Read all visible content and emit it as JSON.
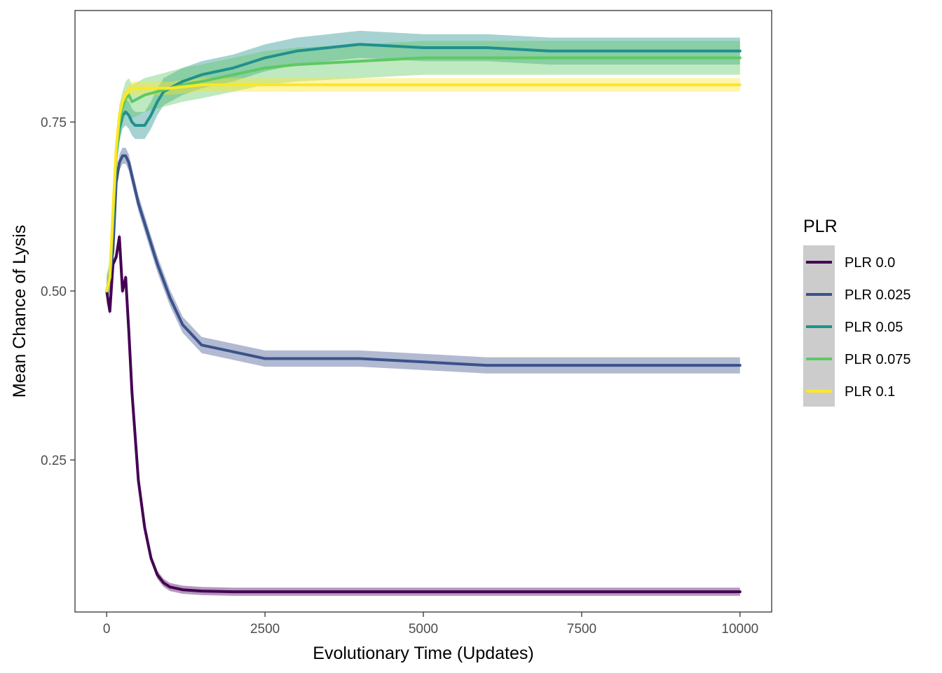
{
  "chart_data": {
    "type": "line",
    "title": "",
    "xlabel": "Evolutionary Time (Updates)",
    "ylabel": "Mean Chance of Lysis",
    "xlim": [
      -500,
      10500
    ],
    "ylim": [
      0.025,
      0.915
    ],
    "x_ticks": [
      0,
      2500,
      5000,
      7500,
      10000
    ],
    "x_tick_labels": [
      "0",
      "2500",
      "5000",
      "7500",
      "10000"
    ],
    "y_ticks": [
      0.25,
      0.5,
      0.75
    ],
    "y_tick_labels": [
      "0.25",
      "0.50",
      "0.75"
    ],
    "grid": false,
    "legend": {
      "title": "PLR",
      "position": "right"
    },
    "series": [
      {
        "name": "PLR 0.0",
        "color": "#440154",
        "ribbon_halfwidth": 0.006,
        "x": [
          0,
          50,
          100,
          150,
          200,
          250,
          300,
          350,
          400,
          500,
          600,
          700,
          800,
          900,
          1000,
          1200,
          1500,
          2000,
          2500,
          3000,
          4000,
          5000,
          6000,
          7000,
          8000,
          9000,
          10000
        ],
        "y": [
          0.5,
          0.47,
          0.54,
          0.55,
          0.58,
          0.5,
          0.52,
          0.44,
          0.35,
          0.22,
          0.15,
          0.105,
          0.08,
          0.068,
          0.062,
          0.058,
          0.056,
          0.055,
          0.055,
          0.055,
          0.055,
          0.055,
          0.055,
          0.055,
          0.055,
          0.055,
          0.055
        ]
      },
      {
        "name": "PLR 0.025",
        "color": "#3b528b",
        "ribbon_halfwidth": 0.012,
        "x": [
          0,
          50,
          100,
          150,
          200,
          250,
          300,
          350,
          400,
          500,
          600,
          700,
          800,
          1000,
          1200,
          1500,
          2000,
          2500,
          3000,
          4000,
          5000,
          6000,
          7000,
          8000,
          9000,
          10000
        ],
        "y": [
          0.5,
          0.52,
          0.56,
          0.66,
          0.69,
          0.7,
          0.7,
          0.69,
          0.67,
          0.63,
          0.6,
          0.57,
          0.54,
          0.49,
          0.45,
          0.42,
          0.41,
          0.4,
          0.4,
          0.4,
          0.395,
          0.39,
          0.39,
          0.39,
          0.39,
          0.39
        ]
      },
      {
        "name": "PLR 0.05",
        "color": "#21908c",
        "ribbon_halfwidth": 0.02,
        "x": [
          0,
          50,
          100,
          150,
          200,
          250,
          300,
          350,
          400,
          450,
          500,
          600,
          700,
          800,
          900,
          1000,
          1200,
          1500,
          2000,
          2500,
          3000,
          3500,
          4000,
          5000,
          6000,
          7000,
          8000,
          9000,
          10000
        ],
        "y": [
          0.5,
          0.52,
          0.6,
          0.7,
          0.74,
          0.76,
          0.765,
          0.76,
          0.75,
          0.745,
          0.745,
          0.745,
          0.76,
          0.78,
          0.795,
          0.8,
          0.81,
          0.82,
          0.83,
          0.845,
          0.855,
          0.86,
          0.865,
          0.86,
          0.86,
          0.855,
          0.855,
          0.855,
          0.855
        ]
      },
      {
        "name": "PLR 0.075",
        "color": "#5ec962",
        "ribbon_halfwidth": 0.025,
        "x": [
          0,
          50,
          100,
          150,
          200,
          250,
          300,
          350,
          400,
          500,
          600,
          800,
          1000,
          1200,
          1500,
          2000,
          2500,
          3000,
          4000,
          5000,
          6000,
          7000,
          8000,
          9000,
          10000
        ],
        "y": [
          0.5,
          0.52,
          0.61,
          0.7,
          0.75,
          0.77,
          0.785,
          0.79,
          0.78,
          0.785,
          0.79,
          0.795,
          0.8,
          0.805,
          0.81,
          0.82,
          0.83,
          0.835,
          0.84,
          0.845,
          0.845,
          0.845,
          0.845,
          0.845,
          0.845
        ]
      },
      {
        "name": "PLR 0.1",
        "color": "#fde725",
        "ribbon_halfwidth": 0.01,
        "x": [
          0,
          50,
          100,
          150,
          200,
          250,
          300,
          350,
          400,
          500,
          700,
          1000,
          1500,
          2000,
          3000,
          4000,
          5000,
          6000,
          7000,
          8000,
          9000,
          10000
        ],
        "y": [
          0.5,
          0.52,
          0.62,
          0.71,
          0.76,
          0.78,
          0.79,
          0.795,
          0.8,
          0.8,
          0.8,
          0.8,
          0.805,
          0.805,
          0.805,
          0.805,
          0.805,
          0.805,
          0.805,
          0.805,
          0.805,
          0.805
        ]
      }
    ]
  }
}
